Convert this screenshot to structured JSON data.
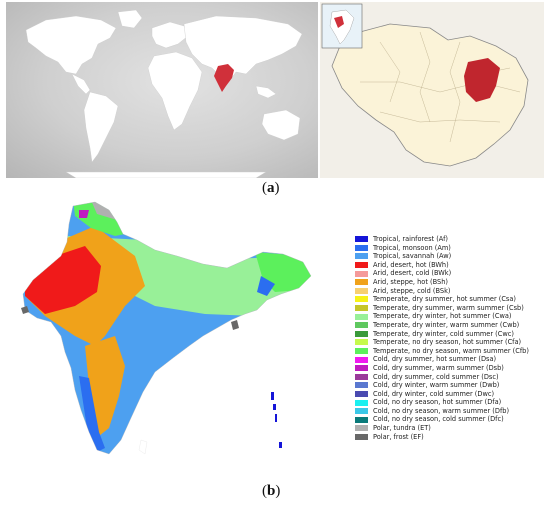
{
  "panels": {
    "a": {
      "caption_letter": "a"
    },
    "b": {
      "caption_letter": "b"
    }
  },
  "map_colors": {
    "ocean_gradient_center": "#e2e2e2",
    "land": "#ffffff",
    "highlight_india": "#d0303a",
    "rajasthan_fill": "#fbf3d8",
    "neighbor_fill": "#f2efe8",
    "water": "#bfe2f2",
    "district_highlight": "#c0262e"
  },
  "legend": {
    "items": [
      {
        "label": "Tropical, rainforest (Af)",
        "color": "#1515d8"
      },
      {
        "label": "Tropical, monsoon (Am)",
        "color": "#2b6ef0"
      },
      {
        "label": "Tropical, savannah (Aw)",
        "color": "#4da0f0"
      },
      {
        "label": "Arid, desert, hot (BWh)",
        "color": "#f01a1a"
      },
      {
        "label": "Arid, desert, cold (BWk)",
        "color": "#f59a9a"
      },
      {
        "label": "Arid, steppe, hot (BSh)",
        "color": "#f0a21a"
      },
      {
        "label": "Arid, steppe, cold (BSk)",
        "color": "#f7d070"
      },
      {
        "label": "Temperate, dry summer, hot summer (Csa)",
        "color": "#f7f218"
      },
      {
        "label": "Temperate, dry summer, warm summer (Csb)",
        "color": "#c6c62a"
      },
      {
        "label": "Temperate, dry winter, hot summer (Cwa)",
        "color": "#98f098"
      },
      {
        "label": "Temperate, dry winter, warm summer (Cwb)",
        "color": "#5fc85f"
      },
      {
        "label": "Temperate, dry winter, cold summer (Cwc)",
        "color": "#3a9a3a"
      },
      {
        "label": "Temperate, no dry season, hot summer (Cfa)",
        "color": "#c6fa4c"
      },
      {
        "label": "Temperate, no dry season, warm summer (Cfb)",
        "color": "#5cf05c"
      },
      {
        "label": "Cold, dry summer, hot summer (Dsa)",
        "color": "#f01af0"
      },
      {
        "label": "Cold, dry summer, warm summer (Dsb)",
        "color": "#c01ac0"
      },
      {
        "label": "Cold, dry summer, cold summer (Dsc)",
        "color": "#9a3a9a"
      },
      {
        "label": "Cold, dry winter, warm summer (Dwb)",
        "color": "#5a78d0"
      },
      {
        "label": "Cold, dry winter, cold summer (Dwc)",
        "color": "#4a4ab0"
      },
      {
        "label": "Cold, no dry season, hot summer (Dfa)",
        "color": "#1af0f0"
      },
      {
        "label": "Cold, no dry season, warm summer (Dfb)",
        "color": "#3ac8e8"
      },
      {
        "label": "Cold, no dry season, cold summer (Dfc)",
        "color": "#0a7a7a"
      },
      {
        "label": "Polar, tundra (ET)",
        "color": "#b0b0b0"
      },
      {
        "label": "Polar, frost (EF)",
        "color": "#686868"
      }
    ]
  }
}
